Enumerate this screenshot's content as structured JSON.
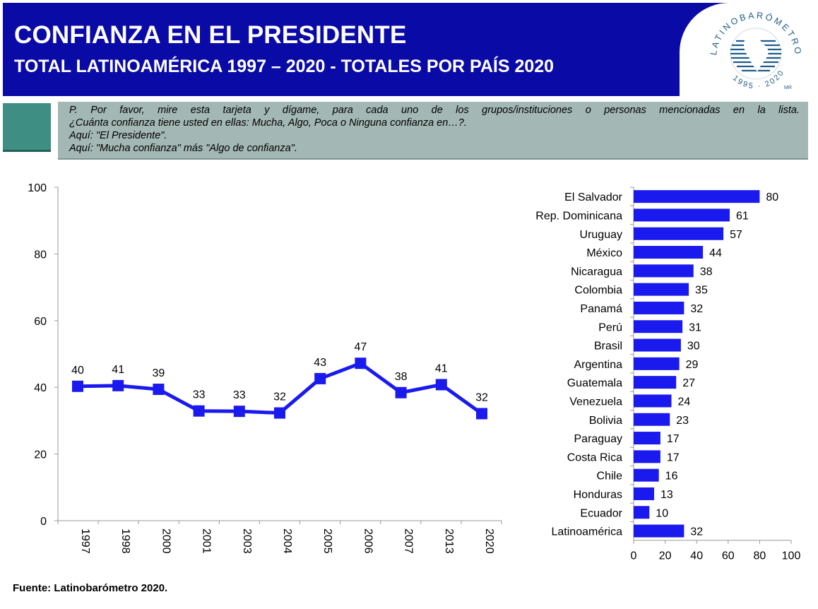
{
  "header": {
    "title": "CONFIANZA EN EL PRESIDENTE",
    "subtitle": "TOTAL LATINOAMÉRICA 1997 – 2020 - TOTALES POR PAÍS 2020",
    "background_color": "#0a0aa6"
  },
  "logo": {
    "ring_text": "LATINOBARÓMETRO",
    "years": "1995 · 2020",
    "mark": "MR",
    "icon": "globe-map-icon"
  },
  "question": {
    "lines": [
      "P. Por favor, mire esta tarjeta y dígame, para cada uno de los grupos/instituciones o personas mencionadas en la lista.",
      "¿Cuánta confianza tiene usted en ellas: Mucha, Algo, Poca o Ninguna confianza en…?.",
      "Aquí: \"El Presidente\".",
      "Aquí: \"Mucha confianza\" más \"Algo de confianza\"."
    ]
  },
  "source": "Fuente: Latinobarómetro 2020.",
  "chart_data": [
    {
      "type": "line",
      "x": [
        "1997",
        "1998",
        "2000",
        "2001",
        "2003",
        "2004",
        "2005",
        "2006",
        "2007",
        "2013",
        "2020"
      ],
      "values": [
        40.3,
        40.5,
        39.4,
        32.9,
        32.8,
        32.3,
        42.6,
        47.2,
        38.4,
        40.8,
        32.1
      ],
      "data_labels": [
        "40",
        "41",
        "39",
        "33",
        "33",
        "32",
        "43",
        "47",
        "38",
        "41",
        "32"
      ],
      "ylim": [
        0,
        100
      ],
      "yticks": [
        "0",
        "20",
        "40",
        "60",
        "80",
        "100"
      ],
      "grid": false,
      "color": "#1a1aee"
    },
    {
      "type": "bar",
      "orientation": "horizontal",
      "categories": [
        "El Salvador",
        "Rep. Dominicana",
        "Uruguay",
        "México",
        "Nicaragua",
        "Colombia",
        "Panamá",
        "Perú",
        "Brasil",
        "Argentina",
        "Guatemala",
        "Venezuela",
        "Bolivia",
        "Paraguay",
        "Costa Rica",
        "Chile",
        "Honduras",
        "Ecuador",
        "Latinoamérica"
      ],
      "values": [
        80,
        61,
        57,
        44,
        38,
        35,
        32,
        31,
        30,
        29,
        27,
        24,
        23,
        17,
        17,
        16,
        13,
        10,
        32
      ],
      "xlim": [
        0,
        100
      ],
      "xticks": [
        "0",
        "20",
        "40",
        "60",
        "80",
        "100"
      ],
      "grid": false,
      "color": "#1a1aee"
    }
  ]
}
